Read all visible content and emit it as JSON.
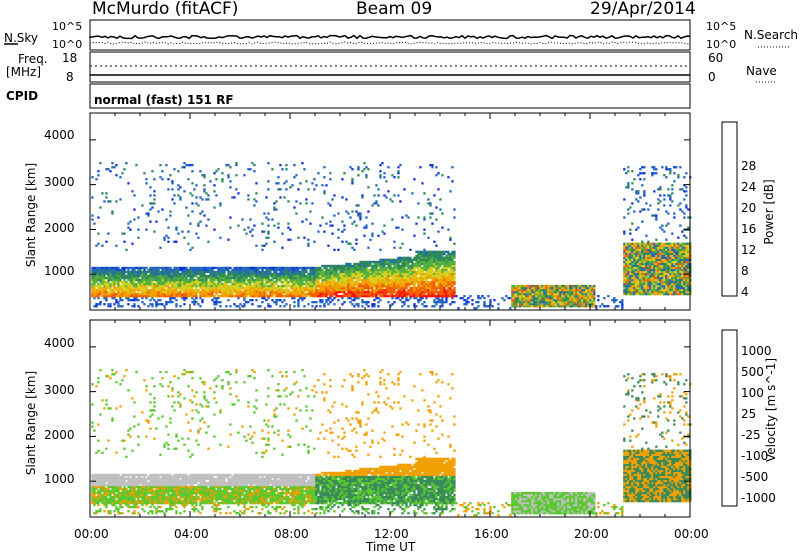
{
  "header": {
    "station": "McMurdo (fitACF)",
    "beam": "Beam 09",
    "date": "29/Apr/2014"
  },
  "status_panels": {
    "nsky_label": "N.Sky",
    "nsky_ticks": [
      "10^5",
      "10^0"
    ],
    "nsearch_label": "N.Search",
    "nsearch_ticks": [
      "10^5",
      "10^0"
    ],
    "freq_label": "Freq.",
    "freq_unit": "[MHz]",
    "freq_ticks": [
      "18",
      "8"
    ],
    "nave_label": "Nave",
    "nave_ticks": [
      "60",
      "0"
    ],
    "cpid_label": "CPID",
    "cpid_value": "normal (fast) 151 RF"
  },
  "chart_data": [
    {
      "type": "heatmap",
      "name": "power",
      "ylabel": "Slant Range [km]",
      "xlabel": "Time UT",
      "y_ticks": [
        "4000",
        "3000",
        "2000",
        "1000"
      ],
      "ylim": [
        200,
        4600
      ],
      "xlim": [
        0,
        24
      ],
      "colorbar_label": "Power [dB]",
      "colorbar_ticks": [
        "28",
        "24",
        "20",
        "16",
        "12",
        "8",
        "4"
      ],
      "colorbar_colors": [
        "#1133dd",
        "#2266c0",
        "#2f8a5a",
        "#55b040",
        "#d6d020",
        "#f5a000",
        "#f06000",
        "#ff1010"
      ]
    },
    {
      "type": "heatmap",
      "name": "velocity",
      "ylabel": "Slant Range [km]",
      "xlabel": "Time UT",
      "y_ticks": [
        "4000",
        "3000",
        "2000",
        "1000"
      ],
      "ylim": [
        200,
        4600
      ],
      "xlim": [
        0,
        24
      ],
      "colorbar_label": "Velocity [m s^-1]",
      "colorbar_ticks": [
        "1000",
        "500",
        "100",
        "25",
        "-25",
        "-100",
        "-500",
        "-1000"
      ],
      "colorbar_colors": [
        "#1a2fb0",
        "#2a6a9a",
        "#3a8a5a",
        "#5ac830",
        "#c0c0c0",
        "#f0a000",
        "#f06000",
        "#ff1a10"
      ]
    }
  ],
  "time_axis": {
    "ticks": [
      "00:00",
      "04:00",
      "08:00",
      "12:00",
      "16:00",
      "20:00",
      "00:00"
    ],
    "label": "Time UT"
  }
}
